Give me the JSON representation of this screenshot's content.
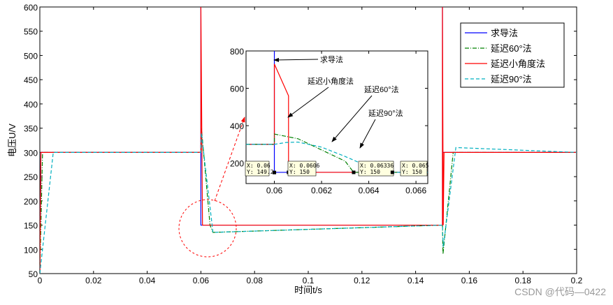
{
  "chart_data": [
    {
      "type": "line",
      "xlabel": "时间t/s",
      "ylabel": "电压U/V",
      "xlim": [
        0,
        0.2
      ],
      "ylim": [
        50,
        600
      ],
      "xticks": [
        "0",
        "0.02",
        "0.04",
        "0.06",
        "0.08",
        "0.1",
        "0.12",
        "0.14",
        "0.16",
        "0.18",
        "0.2"
      ],
      "yticks": [
        "50",
        "100",
        "150",
        "200",
        "250",
        "300",
        "350",
        "400",
        "450",
        "500",
        "550",
        "600"
      ],
      "grid": false,
      "legend": "top-right",
      "series": [
        {
          "name": "求导法",
          "color": "#0000ff",
          "style": "solid",
          "points": [
            [
              0,
              50
            ],
            [
              0.0004,
              300
            ],
            [
              0.06,
              300
            ],
            [
              0.06,
              600
            ],
            [
              0.06,
              150
            ],
            [
              0.15,
              150
            ],
            [
              0.15,
              600
            ],
            [
              0.15,
              300
            ],
            [
              0.2,
              300
            ]
          ]
        },
        {
          "name": "延迟60°法",
          "color": "#008000",
          "style": "dashdot",
          "points": [
            [
              0,
              50
            ],
            [
              0.001,
              300
            ],
            [
              0.06,
              300
            ],
            [
              0.0602,
              350
            ],
            [
              0.0634,
              150
            ],
            [
              0.0645,
              135
            ],
            [
              0.15,
              150
            ],
            [
              0.1502,
              90
            ],
            [
              0.154,
              300
            ],
            [
              0.2,
              300
            ]
          ]
        },
        {
          "name": "延迟小角度法",
          "color": "#ff0000",
          "style": "solid",
          "points": [
            [
              0,
              50
            ],
            [
              0.0004,
              300
            ],
            [
              0.06,
              300
            ],
            [
              0.06,
              600
            ],
            [
              0.0606,
              150
            ],
            [
              0.15,
              150
            ],
            [
              0.15,
              600
            ],
            [
              0.1503,
              150
            ],
            [
              0.1506,
              300
            ],
            [
              0.2,
              300
            ]
          ]
        },
        {
          "name": "延迟90°法",
          "color": "#00b0c0",
          "style": "dashed",
          "points": [
            [
              0,
              50
            ],
            [
              0.005,
              300
            ],
            [
              0.06,
              300
            ],
            [
              0.0602,
              340
            ],
            [
              0.0645,
              135
            ],
            [
              0.15,
              150
            ],
            [
              0.1503,
              105
            ],
            [
              0.155,
              310
            ],
            [
              0.2,
              300
            ]
          ]
        }
      ]
    },
    {
      "type": "line",
      "xlim": [
        0.0588,
        0.0665
      ],
      "ylim": [
        90,
        800
      ],
      "xticks": [
        "0.06",
        "0.062",
        "0.064",
        "0.066"
      ],
      "yticks": [
        "200",
        "400",
        "600",
        "800"
      ],
      "grid": false,
      "series": [
        {
          "name": "求导法",
          "color": "#0000ff",
          "style": "solid",
          "points": [
            [
              0.0588,
              300
            ],
            [
              0.06,
              300
            ],
            [
              0.06,
              800
            ],
            [
              0.06,
              150
            ],
            [
              0.0665,
              150
            ]
          ]
        },
        {
          "name": "延迟小角度法",
          "color": "#ff0000",
          "style": "solid",
          "points": [
            [
              0.0588,
              300
            ],
            [
              0.06,
              300
            ],
            [
              0.06,
              730
            ],
            [
              0.0606,
              560
            ],
            [
              0.0606,
              150
            ],
            [
              0.0665,
              150
            ]
          ]
        },
        {
          "name": "延迟60°法",
          "color": "#008000",
          "style": "dashdot",
          "points": [
            [
              0.0588,
              300
            ],
            [
              0.06,
              300
            ],
            [
              0.06,
              355
            ],
            [
              0.061,
              330
            ],
            [
              0.062,
              270
            ],
            [
              0.063,
              210
            ],
            [
              0.06336,
              150
            ],
            [
              0.0665,
              150
            ]
          ]
        },
        {
          "name": "延迟90°法",
          "color": "#00b0c0",
          "style": "dashed",
          "points": [
            [
              0.0588,
              300
            ],
            [
              0.06,
              300
            ],
            [
              0.0605,
              310
            ],
            [
              0.061,
              312
            ],
            [
              0.062,
              285
            ],
            [
              0.063,
              235
            ],
            [
              0.064,
              180
            ],
            [
              0.0646,
              150
            ],
            [
              0.0665,
              150
            ]
          ]
        }
      ],
      "annotations": [
        "求导法",
        "延迟小角度法",
        "延迟60°法",
        "延迟90°法"
      ],
      "datatips": [
        {
          "x": 0.06,
          "y": 149.2,
          "xtext": "X: 0.06",
          "ytext": "Y: 149.2"
        },
        {
          "x": 0.0606,
          "y": 150,
          "xtext": "X: 0.0606",
          "ytext": "Y: 150"
        },
        {
          "x": 0.06336,
          "y": 150,
          "xtext": "X: 0.06336",
          "ytext": "Y: 150"
        },
        {
          "x": 0.065,
          "y": 150,
          "xtext": "X: 0.065",
          "ytext": "Y: 150"
        }
      ]
    }
  ],
  "watermark": "CSDN @代码—0422"
}
